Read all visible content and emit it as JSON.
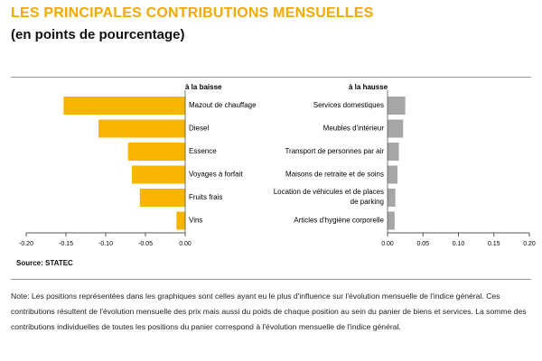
{
  "header": {
    "title": "LES PRINCIPALES CONTRIBUTIONS MENSUELLES",
    "subtitle": "(en points de pourcentage)"
  },
  "source": "Source: STATEC",
  "note": "Note: Les positions représentées dans les graphiques sont celles ayant eu le plus d'influence sur l'évolution mensuelle de l'indice général. Ces contributions résultent de l'évolution mensuelle des prix mais aussi du poids de chaque position au sein du panier de biens et services. La somme des contributions individuelles de toutes les positions du panier correspond à l'évolution mensuelle de l'indice général.",
  "colors": {
    "baisse": "#f7b500",
    "hausse": "#a6a6a6",
    "title": "#f2a900"
  },
  "chart_data": [
    {
      "type": "bar",
      "orientation": "horizontal",
      "title": "à la baisse",
      "categories": [
        "Mazout de chauffage",
        "Diesel",
        "Essence",
        "Voyages à forfait",
        "Fruits frais",
        "Vins"
      ],
      "values": [
        -0.153,
        -0.109,
        -0.072,
        -0.067,
        -0.057,
        -0.011
      ],
      "xlim": [
        -0.2,
        0.0
      ],
      "xticks": [
        "-0.20",
        "-0.15",
        "-0.10",
        "-0.05",
        "0.00"
      ],
      "color": "#f7b500"
    },
    {
      "type": "bar",
      "orientation": "horizontal",
      "title": "à la hausse",
      "categories": [
        "Services domestiques",
        "Meubles d'intérieur",
        "Transport de personnes par air",
        "Maisons de retraite et de soins",
        "Location de véhicules et de places\nde parking",
        "Articles d'hygiène corporelle"
      ],
      "values": [
        0.025,
        0.022,
        0.016,
        0.014,
        0.011,
        0.01
      ],
      "xlim": [
        0.0,
        0.2
      ],
      "xticks": [
        "0.00",
        "0.05",
        "0.10",
        "0.15",
        "0.20"
      ],
      "color": "#a6a6a6"
    }
  ]
}
